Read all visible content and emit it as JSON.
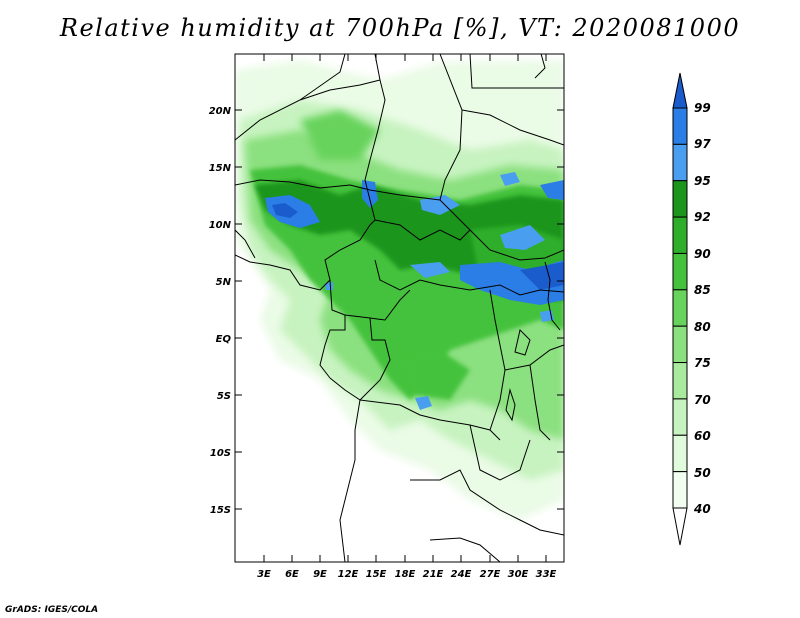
{
  "title": "Relative humidity at 700hPa [%], VT: 2020081000",
  "credit": "GrADS: IGES/COLA",
  "map": {
    "variable": "Relative humidity",
    "level": "700hPa",
    "units": "%",
    "valid_time": "2020081000",
    "region": "Central Africa",
    "lat_labels": [
      "20N",
      "15N",
      "10N",
      "5N",
      "EQ",
      "5S",
      "10S",
      "15S"
    ],
    "lon_labels": [
      "3E",
      "6E",
      "9E",
      "12E",
      "15E",
      "18E",
      "21E",
      "24E",
      "27E",
      "30E",
      "33E"
    ]
  },
  "colorbar": {
    "levels": [
      "99",
      "97",
      "95",
      "92",
      "90",
      "85",
      "80",
      "75",
      "70",
      "60",
      "50",
      "40"
    ],
    "colors": {
      "40": "#f2fff0",
      "50": "#e0fbdc",
      "60": "#c7f3c0",
      "70": "#a9ea9f",
      "75": "#8be07f",
      "80": "#67d35c",
      "85": "#45c23d",
      "90": "#2fae2c",
      "92": "#1c951c",
      "95": "#4a9ef0",
      "97": "#2b7ee6",
      "99": "#1a5ccc"
    }
  }
}
